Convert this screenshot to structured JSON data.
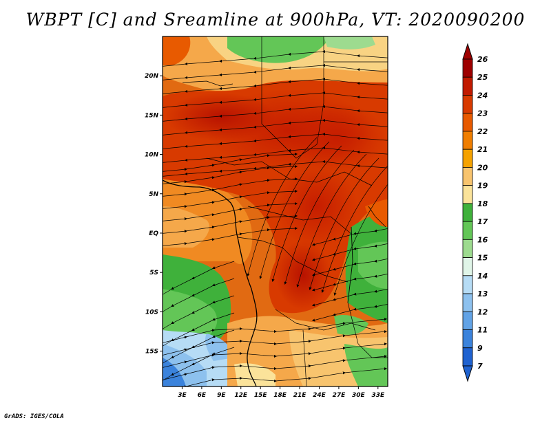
{
  "title": "WBPT [C] and Sreamline at 900hPa, VT: 2020090200",
  "credit": "GrADS: IGES/COLA",
  "map": {
    "lat_labels": [
      "20N",
      "15N",
      "10N",
      "5N",
      "EQ",
      "5S",
      "10S",
      "15S"
    ],
    "lat_values": [
      20,
      15,
      10,
      5,
      0,
      -5,
      -10,
      -15
    ],
    "lon_labels": [
      "3E",
      "6E",
      "9E",
      "12E",
      "15E",
      "18E",
      "21E",
      "24E",
      "27E",
      "30E",
      "33E"
    ],
    "lon_values": [
      3,
      6,
      9,
      12,
      15,
      18,
      21,
      24,
      27,
      30,
      33
    ],
    "lon_range": [
      0,
      34.5
    ],
    "lat_range": [
      -19.5,
      25
    ]
  },
  "colorbar": {
    "labels": [
      "26",
      "25",
      "24",
      "23",
      "22",
      "21",
      "20",
      "19",
      "18",
      "17",
      "16",
      "15",
      "14",
      "13",
      "12",
      "11",
      "9",
      "7"
    ],
    "colors": [
      "#9e0000",
      "#c11a00",
      "#d83a00",
      "#e85a00",
      "#f07e00",
      "#f5a200",
      "#f8c46e",
      "#fbe39a",
      "#3fb13b",
      "#63c657",
      "#9ddb8f",
      "#e0f5e8",
      "#b6dcf5",
      "#8dc1ee",
      "#62a3e6",
      "#3b83dc",
      "#1f62d0"
    ]
  }
}
